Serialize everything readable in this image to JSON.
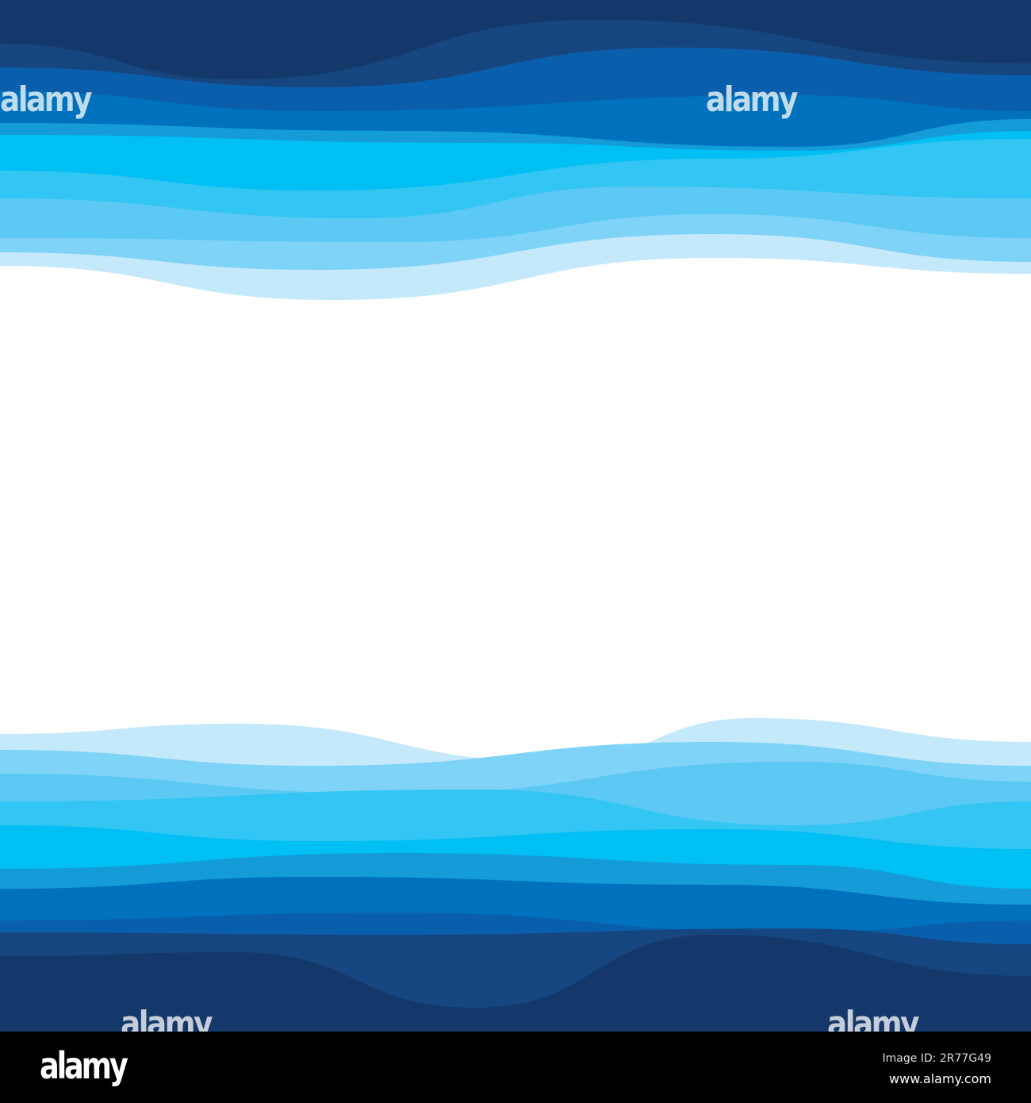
{
  "image": {
    "top_layer_colors": [
      "#c4e9fb",
      "#7fd3f7",
      "#5bc9f3",
      "#33c5f3",
      "#00bff3",
      "#149bd8",
      "#0071bd",
      "#0a5fad",
      "#16467f",
      "#15386a"
    ],
    "bottom_layer_colors": [
      "#c4e9fb",
      "#7fd3f7",
      "#5bc9f3",
      "#33c5f3",
      "#00bff3",
      "#149bd8",
      "#0071bd",
      "#0a5fad",
      "#16467f",
      "#15386a"
    ],
    "background_color": "#ffffff",
    "watermark": "alamy"
  },
  "footer": {
    "logo": "alamy",
    "image_id": "Image ID: 2R77G49",
    "website": "www.alamy.com"
  }
}
